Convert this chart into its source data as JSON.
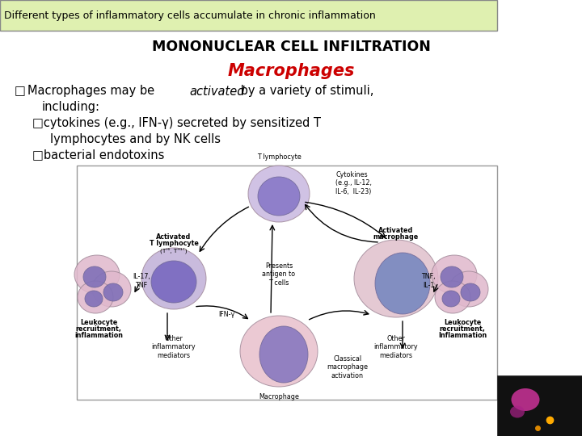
{
  "title_box_text": "Different types of inflammatory cells accumulate in chronic inflammation",
  "title_box_bg": "#dff0b0",
  "title_box_border": "#888888",
  "heading1": "MONONUCLEAR CELL INFILTRATION",
  "heading2": "Macrophages",
  "heading2_color": "#cc0000",
  "bg_color": "#ffffff",
  "text_color": "#000000",
  "font_size_title": 9.0,
  "font_size_heading1": 12.5,
  "font_size_heading2": 15,
  "font_size_body": 10.5,
  "font_size_diagram": 5.8,
  "diagram_border_color": "#999999",
  "cell_pink": "#e8c0d0",
  "cell_purple": "#9080c8",
  "cell_lavender": "#c0b8e8",
  "cell_blue": "#8090c8",
  "leuko_pink": "#e0b8cc",
  "leuko_purple": "#8070b8"
}
